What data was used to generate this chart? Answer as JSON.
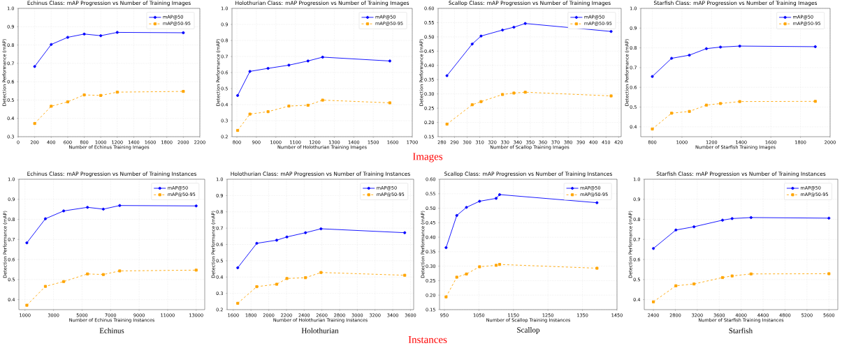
{
  "chart_data": [
    {
      "type": "line",
      "title": "Echinus Class: mAP Progression vs Number of Training Images",
      "xlabel": "Number of Echinus Training Images",
      "ylabel": "Detection Performance (mAP)",
      "x": [
        200,
        400,
        600,
        800,
        1000,
        1200,
        2000
      ],
      "series": [
        {
          "name": "mAP@50",
          "color": "#0000ff",
          "marker": "circle",
          "line_style": "solid",
          "values": [
            0.683,
            0.803,
            0.842,
            0.86,
            0.851,
            0.869,
            0.867
          ]
        },
        {
          "name": "mAP@50-95",
          "color": "#ffa500",
          "marker": "square",
          "line_style": "dashed",
          "values": [
            0.372,
            0.466,
            0.49,
            0.528,
            0.525,
            0.543,
            0.547
          ]
        }
      ],
      "xlim": [
        0,
        2200
      ],
      "xticks": [
        0,
        200,
        400,
        600,
        800,
        1000,
        1200,
        1400,
        1600,
        1800,
        2000,
        2200
      ],
      "ylim": [
        0.3,
        1.0
      ],
      "yticks": [
        0.3,
        0.4,
        0.5,
        0.6,
        0.7,
        0.8,
        0.9,
        {
          "value": 1.0,
          "label": "1.0"
        }
      ],
      "grid": true,
      "legend": "top right"
    },
    {
      "type": "line",
      "title": "Holothurian Class: mAP Progression vs Number of Training Images",
      "xlabel": "Number of Holothurian Training Images",
      "ylabel": "Detection Performance (mAP)",
      "x": [
        804,
        867,
        960,
        1067,
        1165,
        1240,
        1585
      ],
      "series": [
        {
          "name": "mAP@50",
          "color": "#0000ff",
          "marker": "circle",
          "line_style": "solid",
          "values": [
            0.457,
            0.607,
            0.626,
            0.646,
            0.672,
            0.696,
            0.672
          ]
        },
        {
          "name": "mAP@50-95",
          "color": "#ffa500",
          "marker": "square",
          "line_style": "dashed",
          "values": [
            0.239,
            0.341,
            0.356,
            0.391,
            0.396,
            0.428,
            0.411
          ]
        }
      ],
      "xlim": [
        775,
        1700
      ],
      "xticks": [
        800,
        900,
        1000,
        1100,
        1200,
        1300,
        1400,
        1500,
        1600,
        1700
      ],
      "ylim": [
        0.2,
        1.0
      ],
      "yticks": [
        0.2,
        0.3,
        0.4,
        0.5,
        0.6,
        0.7,
        0.8,
        0.9,
        {
          "value": 1.0,
          "label": "1.0"
        }
      ],
      "grid": true,
      "legend": "top right",
      "annotations": [
        "Images"
      ]
    },
    {
      "type": "line",
      "title": "Scallop Class: mAP Progression vs Number of Training Images",
      "xlabel": "Number of Scallop Training Images",
      "ylabel": "Detection Performance (mAP)",
      "x": [
        284,
        304,
        311,
        328,
        337,
        346,
        414
      ],
      "series": [
        {
          "name": "mAP@50",
          "color": "#0000ff",
          "marker": "circle",
          "line_style": "solid",
          "values": [
            0.364,
            0.475,
            0.503,
            0.524,
            0.534,
            0.547,
            0.519
          ]
        },
        {
          "name": "mAP@50-95",
          "color": "#ffa500",
          "marker": "square",
          "line_style": "dashed",
          "values": [
            0.194,
            0.262,
            0.273,
            0.298,
            0.303,
            0.306,
            0.293
          ]
        }
      ],
      "xlim": [
        277,
        422
      ],
      "xticks": [
        280,
        290,
        300,
        310,
        320,
        330,
        340,
        350,
        360,
        370,
        380,
        390,
        400,
        410,
        420
      ],
      "ylim": [
        0.15,
        0.6
      ],
      "yticks": [
        {
          "value": 0.15,
          "label": "0.15"
        },
        {
          "value": 0.2,
          "label": "0.20"
        },
        {
          "value": 0.25,
          "label": "0.25"
        },
        {
          "value": 0.3,
          "label": "0.30"
        },
        {
          "value": 0.35,
          "label": "0.35"
        },
        {
          "value": 0.4,
          "label": "0.40"
        },
        {
          "value": 0.45,
          "label": "0.45"
        },
        {
          "value": 0.5,
          "label": "0.50"
        },
        {
          "value": 0.55,
          "label": "0.55"
        },
        {
          "value": 0.6,
          "label": "0.60"
        }
      ],
      "grid": true,
      "legend": "top right"
    },
    {
      "type": "line",
      "title": "Starfish Class: mAP Progression vs Number of Training Images",
      "xlabel": "Number of Starfish Training Images",
      "ylabel": "Detection Performance (mAP)",
      "x": [
        800,
        930,
        1050,
        1165,
        1260,
        1390,
        1900
      ],
      "series": [
        {
          "name": "mAP@50",
          "color": "#0000ff",
          "marker": "circle",
          "line_style": "solid",
          "values": [
            0.655,
            0.747,
            0.763,
            0.796,
            0.804,
            0.809,
            0.806
          ]
        },
        {
          "name": "mAP@50-95",
          "color": "#ffa500",
          "marker": "square",
          "line_style": "dashed",
          "values": [
            0.389,
            0.469,
            0.478,
            0.51,
            0.518,
            0.528,
            0.529
          ]
        }
      ],
      "xlim": [
        722,
        2000
      ],
      "xticks": [
        800,
        1000,
        1200,
        1400,
        1600,
        1800,
        2000
      ],
      "ylim": [
        0.35,
        1.0
      ],
      "yticks": [
        0.4,
        0.5,
        0.6,
        0.7,
        0.8,
        0.9,
        {
          "value": 1.0,
          "label": "1.0"
        }
      ],
      "grid": true,
      "legend": "top right"
    },
    {
      "type": "line",
      "title": "Echinus Class: mAP Progression vs Number of Training Instances",
      "xlabel": "Number of Echinus Training Instances",
      "ylabel": "Detection Performance (mAP)",
      "x": [
        1130,
        2430,
        3710,
        5380,
        6490,
        7640,
        13000
      ],
      "series": [
        {
          "name": "mAP@50",
          "color": "#0000ff",
          "marker": "circle",
          "line_style": "solid",
          "values": [
            0.683,
            0.803,
            0.842,
            0.86,
            0.851,
            0.869,
            0.867
          ]
        },
        {
          "name": "mAP@50-95",
          "color": "#ffa500",
          "marker": "square",
          "line_style": "dashed",
          "values": [
            0.372,
            0.466,
            0.49,
            0.528,
            0.525,
            0.543,
            0.547
          ]
        }
      ],
      "xlim": [
        570,
        13600
      ],
      "xticks": [
        1000,
        3000,
        5000,
        7000,
        9000,
        11000,
        13000
      ],
      "ylim": [
        0.35,
        1.0
      ],
      "yticks": [
        0.4,
        0.5,
        0.6,
        0.7,
        0.8,
        0.9,
        {
          "value": 1.0,
          "label": "1.0"
        }
      ],
      "grid": true,
      "legend": "top right",
      "annotations": [
        "Echinus"
      ]
    },
    {
      "type": "line",
      "title": "Holothurian Class: mAP Progression vs Number of Training Instances",
      "xlabel": "Number of Holothurian Training Instances",
      "ylabel": "Detection Performance (mAP)",
      "x": [
        1650,
        1865,
        2090,
        2205,
        2415,
        2590,
        3535
      ],
      "series": [
        {
          "name": "mAP@50",
          "color": "#0000ff",
          "marker": "circle",
          "line_style": "solid",
          "values": [
            0.457,
            0.607,
            0.626,
            0.646,
            0.672,
            0.696,
            0.672
          ]
        },
        {
          "name": "mAP@50-95",
          "color": "#ffa500",
          "marker": "square",
          "line_style": "dashed",
          "values": [
            0.239,
            0.341,
            0.356,
            0.391,
            0.396,
            0.428,
            0.411
          ]
        }
      ],
      "xlim": [
        1530,
        3636
      ],
      "xticks": [
        1600,
        1800,
        2000,
        2200,
        2400,
        2600,
        2800,
        3000,
        3200,
        3400,
        3600
      ],
      "ylim": [
        0.2,
        1.0
      ],
      "yticks": [
        0.2,
        0.3,
        0.4,
        0.5,
        0.6,
        0.7,
        0.8,
        0.9,
        {
          "value": 1.0,
          "label": "1.0"
        }
      ],
      "grid": true,
      "legend": "top right",
      "annotations": [
        "Holothurian",
        "Instances"
      ]
    },
    {
      "type": "line",
      "title": "Scallop Class: mAP Progression vs Number of Training Instances",
      "xlabel": "Number of Scallop Training Instances",
      "ylabel": "Detection Performance (mAP)",
      "x": [
        955,
        986,
        1014,
        1052,
        1100,
        1110,
        1392
      ],
      "series": [
        {
          "name": "mAP@50",
          "color": "#0000ff",
          "marker": "circle",
          "line_style": "solid",
          "values": [
            0.364,
            0.475,
            0.503,
            0.524,
            0.534,
            0.547,
            0.519
          ]
        },
        {
          "name": "mAP@50-95",
          "color": "#ffa500",
          "marker": "square",
          "line_style": "dashed",
          "values": [
            0.194,
            0.262,
            0.273,
            0.298,
            0.303,
            0.306,
            0.293
          ]
        }
      ],
      "xlim": [
        936,
        1450
      ],
      "xticks": [
        950,
        1050,
        1150,
        1250,
        1350,
        1450
      ],
      "ylim": [
        0.15,
        0.6
      ],
      "yticks": [
        {
          "value": 0.15,
          "label": "0.15"
        },
        {
          "value": 0.2,
          "label": "0.20"
        },
        {
          "value": 0.25,
          "label": "0.25"
        },
        {
          "value": 0.3,
          "label": "0.30"
        },
        {
          "value": 0.35,
          "label": "0.35"
        },
        {
          "value": 0.4,
          "label": "0.40"
        },
        {
          "value": 0.45,
          "label": "0.45"
        },
        {
          "value": 0.5,
          "label": "0.50"
        },
        {
          "value": 0.55,
          "label": "0.55"
        },
        {
          "value": 0.6,
          "label": "0.60"
        }
      ],
      "grid": true,
      "legend": "top right",
      "annotations": [
        "Scallop"
      ]
    },
    {
      "type": "line",
      "title": "Starfish Class: mAP Progression vs Number of Training Instances",
      "xlabel": "Number of Starfish Training Instances",
      "ylabel": "Detection Performance (mAP)",
      "x": [
        2400,
        2810,
        3140,
        3660,
        3835,
        4180,
        5600
      ],
      "series": [
        {
          "name": "mAP@50",
          "color": "#0000ff",
          "marker": "circle",
          "line_style": "solid",
          "values": [
            0.655,
            0.747,
            0.763,
            0.796,
            0.804,
            0.809,
            0.806
          ]
        },
        {
          "name": "mAP@50-95",
          "color": "#ffa500",
          "marker": "square",
          "line_style": "dashed",
          "values": [
            0.389,
            0.469,
            0.478,
            0.51,
            0.518,
            0.528,
            0.529
          ]
        }
      ],
      "xlim": [
        2233,
        5762
      ],
      "xticks": [
        2400,
        2800,
        3200,
        3600,
        4000,
        4400,
        4800,
        5200,
        5600
      ],
      "ylim": [
        0.35,
        1.0
      ],
      "yticks": [
        0.4,
        0.5,
        0.6,
        0.7,
        0.8,
        0.9,
        {
          "value": 1.0,
          "label": "1.0"
        }
      ],
      "grid": true,
      "legend": "top right",
      "annotations": [
        "Starfish"
      ]
    }
  ]
}
